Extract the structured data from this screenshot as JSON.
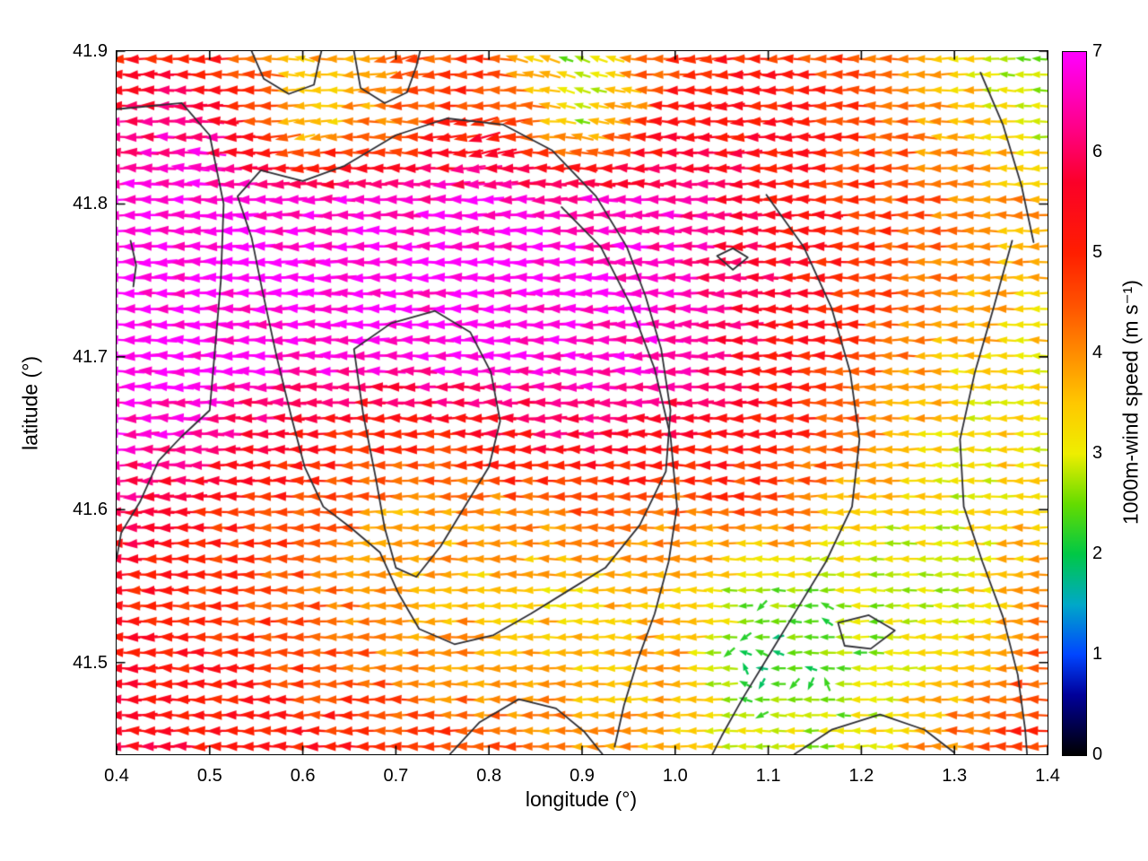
{
  "chart_data": {
    "type": "quiver",
    "title": "",
    "xlabel": "longitude (°)",
    "ylabel": "latitude (°)",
    "xlim": [
      0.4,
      1.4
    ],
    "ylim": [
      41.44,
      41.9
    ],
    "xticks": [
      0.4,
      0.5,
      0.6,
      0.7,
      0.8,
      0.9,
      1.0,
      1.1,
      1.2,
      1.3,
      1.4
    ],
    "xtick_labels": [
      "0.4",
      "0.5",
      "0.6",
      "0.7",
      "0.8",
      "0.9",
      "1.0",
      "1.1",
      "1.2",
      "1.3",
      "1.4"
    ],
    "yticks": [
      41.5,
      41.6,
      41.7,
      41.8,
      41.9
    ],
    "ytick_labels": [
      "41.5",
      "41.6",
      "41.7",
      "41.8",
      "41.9"
    ],
    "grid": false,
    "colorbar": {
      "label": "1000m-wind speed (m s⁻¹)",
      "min": 0,
      "max": 7,
      "ticks": [
        0,
        1,
        2,
        3,
        4,
        5,
        6,
        7
      ],
      "tick_labels": [
        "0",
        "1",
        "2",
        "3",
        "4",
        "5",
        "6",
        "7"
      ],
      "colormap_stops": [
        [
          0.0,
          "#000000"
        ],
        [
          0.6,
          "#00009a"
        ],
        [
          1.0,
          "#0045ff"
        ],
        [
          1.5,
          "#00a8c8"
        ],
        [
          2.0,
          "#00c846"
        ],
        [
          2.5,
          "#64dc00"
        ],
        [
          3.0,
          "#eeee00"
        ],
        [
          3.5,
          "#ffc800"
        ],
        [
          4.0,
          "#ff8c00"
        ],
        [
          4.5,
          "#ff5000"
        ],
        [
          5.0,
          "#ff1e00"
        ],
        [
          5.7,
          "#fb0028"
        ],
        [
          6.2,
          "#ff0080"
        ],
        [
          7.0,
          "#ff00ff"
        ]
      ]
    },
    "field": {
      "description": "1000 m wind vectors, predominantly blowing toward the west (arrows point left); speed in m/s sampled on control grid",
      "lon_nodes": [
        0.4,
        0.5,
        0.6,
        0.7,
        0.8,
        0.9,
        1.0,
        1.1,
        1.2,
        1.3,
        1.4
      ],
      "lat_nodes": [
        41.9,
        41.85,
        41.8,
        41.75,
        41.7,
        41.65,
        41.6,
        41.55,
        41.5,
        41.45
      ],
      "speed_grid": [
        [
          5.2,
          5.0,
          3.6,
          4.2,
          4.6,
          2.4,
          4.8,
          5.0,
          4.4,
          3.4,
          2.4
        ],
        [
          6.2,
          6.3,
          3.4,
          4.2,
          5.2,
          3.0,
          5.2,
          5.4,
          4.6,
          3.8,
          2.8
        ],
        [
          6.9,
          6.9,
          6.8,
          6.7,
          6.8,
          6.7,
          6.5,
          5.5,
          4.8,
          4.2,
          3.8
        ],
        [
          7.0,
          7.0,
          6.9,
          6.9,
          6.9,
          6.9,
          6.6,
          5.8,
          4.8,
          4.0,
          3.4
        ],
        [
          7.0,
          6.9,
          6.8,
          6.8,
          6.9,
          6.8,
          6.6,
          5.6,
          4.6,
          3.6,
          3.2
        ],
        [
          6.8,
          6.4,
          5.4,
          5.0,
          5.4,
          6.0,
          5.6,
          5.2,
          4.2,
          3.2,
          3.2
        ],
        [
          6.0,
          5.2,
          4.6,
          3.9,
          4.0,
          4.4,
          4.2,
          4.6,
          3.4,
          3.0,
          3.6
        ],
        [
          5.4,
          4.8,
          4.4,
          3.8,
          3.6,
          3.4,
          3.6,
          2.6,
          2.8,
          3.0,
          4.0
        ],
        [
          5.4,
          5.2,
          4.6,
          4.2,
          3.8,
          3.6,
          3.8,
          1.8,
          2.6,
          3.4,
          4.4
        ],
        [
          5.6,
          5.4,
          5.2,
          4.8,
          4.4,
          4.0,
          3.6,
          2.8,
          3.0,
          4.2,
          5.0
        ]
      ],
      "direction_dev_deg_grid": [
        [
          0,
          -8,
          15,
          -20,
          10,
          25,
          -5,
          0,
          5,
          -5,
          8
        ],
        [
          0,
          5,
          -12,
          8,
          -15,
          12,
          0,
          -5,
          0,
          5,
          0
        ],
        [
          0,
          0,
          0,
          0,
          0,
          0,
          0,
          0,
          0,
          0,
          0
        ],
        [
          0,
          0,
          0,
          0,
          0,
          0,
          0,
          0,
          0,
          0,
          0
        ],
        [
          0,
          0,
          0,
          0,
          0,
          0,
          0,
          0,
          0,
          0,
          0
        ],
        [
          0,
          0,
          0,
          0,
          0,
          0,
          0,
          0,
          0,
          0,
          0
        ],
        [
          0,
          0,
          0,
          0,
          0,
          0,
          0,
          0,
          0,
          0,
          0
        ],
        [
          0,
          0,
          0,
          0,
          0,
          0,
          0,
          0,
          0,
          0,
          0
        ],
        [
          0,
          0,
          0,
          0,
          0,
          0,
          0,
          0,
          0,
          0,
          0
        ],
        [
          0,
          0,
          0,
          0,
          0,
          0,
          0,
          0,
          0,
          0,
          0
        ]
      ],
      "base_direction_deg": 180,
      "arrow_cols": 57,
      "arrow_rows": 45,
      "jitter_deg": 5,
      "slow_threshold": 2.3,
      "slow_jitter_deg": 75,
      "speed_noise": 0.9
    },
    "contour_color": "#2e2e34",
    "contours_lonlat": [
      [
        [
          0.4,
          41.862
        ],
        [
          0.47,
          41.866
        ],
        [
          0.5,
          41.845
        ],
        [
          0.515,
          41.8
        ],
        [
          0.512,
          41.75
        ],
        [
          0.505,
          41.7
        ],
        [
          0.5,
          41.665
        ],
        [
          0.47,
          41.648
        ],
        [
          0.445,
          41.632
        ],
        [
          0.425,
          41.605
        ],
        [
          0.405,
          41.585
        ],
        [
          0.4,
          41.568
        ]
      ],
      [
        [
          0.53,
          41.805
        ],
        [
          0.555,
          41.822
        ],
        [
          0.6,
          41.815
        ],
        [
          0.645,
          41.825
        ],
        [
          0.7,
          41.845
        ],
        [
          0.755,
          41.856
        ],
        [
          0.815,
          41.852
        ],
        [
          0.868,
          41.835
        ],
        [
          0.915,
          41.805
        ],
        [
          0.948,
          41.772
        ],
        [
          0.968,
          41.74
        ],
        [
          0.985,
          41.705
        ],
        [
          0.995,
          41.665
        ],
        [
          0.99,
          41.625
        ],
        [
          0.962,
          41.59
        ],
        [
          0.925,
          41.562
        ],
        [
          0.885,
          41.547
        ],
        [
          0.845,
          41.532
        ],
        [
          0.805,
          41.518
        ],
        [
          0.763,
          41.512
        ],
        [
          0.725,
          41.522
        ],
        [
          0.703,
          41.545
        ],
        [
          0.683,
          41.572
        ],
        [
          0.652,
          41.588
        ],
        [
          0.622,
          41.602
        ],
        [
          0.602,
          41.628
        ],
        [
          0.588,
          41.66
        ],
        [
          0.572,
          41.7
        ],
        [
          0.556,
          41.745
        ],
        [
          0.545,
          41.778
        ],
        [
          0.53,
          41.805
        ]
      ],
      [
        [
          0.655,
          41.705
        ],
        [
          0.695,
          41.722
        ],
        [
          0.742,
          41.73
        ],
        [
          0.78,
          41.716
        ],
        [
          0.802,
          41.69
        ],
        [
          0.812,
          41.658
        ],
        [
          0.8,
          41.628
        ],
        [
          0.772,
          41.6
        ],
        [
          0.748,
          41.576
        ],
        [
          0.722,
          41.556
        ],
        [
          0.7,
          41.562
        ],
        [
          0.688,
          41.588
        ],
        [
          0.678,
          41.622
        ],
        [
          0.665,
          41.662
        ],
        [
          0.655,
          41.705
        ]
      ],
      [
        [
          0.878,
          41.798
        ],
        [
          0.92,
          41.772
        ],
        [
          0.952,
          41.734
        ],
        [
          0.978,
          41.692
        ],
        [
          0.995,
          41.648
        ],
        [
          1.002,
          41.602
        ],
        [
          0.993,
          41.566
        ],
        [
          0.978,
          41.532
        ],
        [
          0.96,
          41.502
        ],
        [
          0.945,
          41.472
        ],
        [
          0.935,
          41.445
        ]
      ],
      [
        [
          1.098,
          41.806
        ],
        [
          1.138,
          41.772
        ],
        [
          1.168,
          41.732
        ],
        [
          1.188,
          41.69
        ],
        [
          1.198,
          41.646
        ],
        [
          1.19,
          41.602
        ],
        [
          1.162,
          41.566
        ],
        [
          1.132,
          41.536
        ],
        [
          1.102,
          41.506
        ],
        [
          1.072,
          41.476
        ],
        [
          1.05,
          41.452
        ],
        [
          1.04,
          41.44
        ]
      ],
      [
        [
          1.328,
          41.886
        ],
        [
          1.352,
          41.852
        ],
        [
          1.372,
          41.812
        ],
        [
          1.385,
          41.775
        ]
      ],
      [
        [
          1.362,
          41.776
        ],
        [
          1.342,
          41.732
        ],
        [
          1.322,
          41.69
        ],
        [
          1.306,
          41.646
        ],
        [
          1.31,
          41.602
        ],
        [
          1.33,
          41.566
        ],
        [
          1.352,
          41.53
        ],
        [
          1.368,
          41.492
        ],
        [
          1.376,
          41.456
        ],
        [
          1.378,
          41.44
        ]
      ],
      [
        [
          1.045,
          41.766
        ],
        [
          1.062,
          41.771
        ],
        [
          1.078,
          41.765
        ],
        [
          1.062,
          41.757
        ],
        [
          1.045,
          41.766
        ]
      ],
      [
        [
          0.545,
          41.9
        ],
        [
          0.558,
          41.882
        ],
        [
          0.585,
          41.872
        ],
        [
          0.612,
          41.878
        ],
        [
          0.618,
          41.895
        ],
        [
          0.62,
          41.9
        ]
      ],
      [
        [
          0.655,
          41.9
        ],
        [
          0.662,
          41.876
        ],
        [
          0.688,
          41.866
        ],
        [
          0.712,
          41.873
        ],
        [
          0.722,
          41.89
        ],
        [
          0.726,
          41.9
        ]
      ],
      [
        [
          1.175,
          41.526
        ],
        [
          1.208,
          41.531
        ],
        [
          1.236,
          41.521
        ],
        [
          1.21,
          41.509
        ],
        [
          1.182,
          41.511
        ],
        [
          1.175,
          41.526
        ]
      ],
      [
        [
          0.758,
          41.44
        ],
        [
          0.79,
          41.461
        ],
        [
          0.832,
          41.476
        ],
        [
          0.872,
          41.47
        ],
        [
          0.902,
          41.455
        ],
        [
          0.922,
          41.44
        ]
      ],
      [
        [
          1.128,
          41.44
        ],
        [
          1.168,
          41.456
        ],
        [
          1.22,
          41.466
        ],
        [
          1.268,
          41.456
        ],
        [
          1.3,
          41.441
        ]
      ],
      [
        [
          0.415,
          41.776
        ],
        [
          0.421,
          41.76
        ],
        [
          0.418,
          41.746
        ]
      ]
    ]
  }
}
